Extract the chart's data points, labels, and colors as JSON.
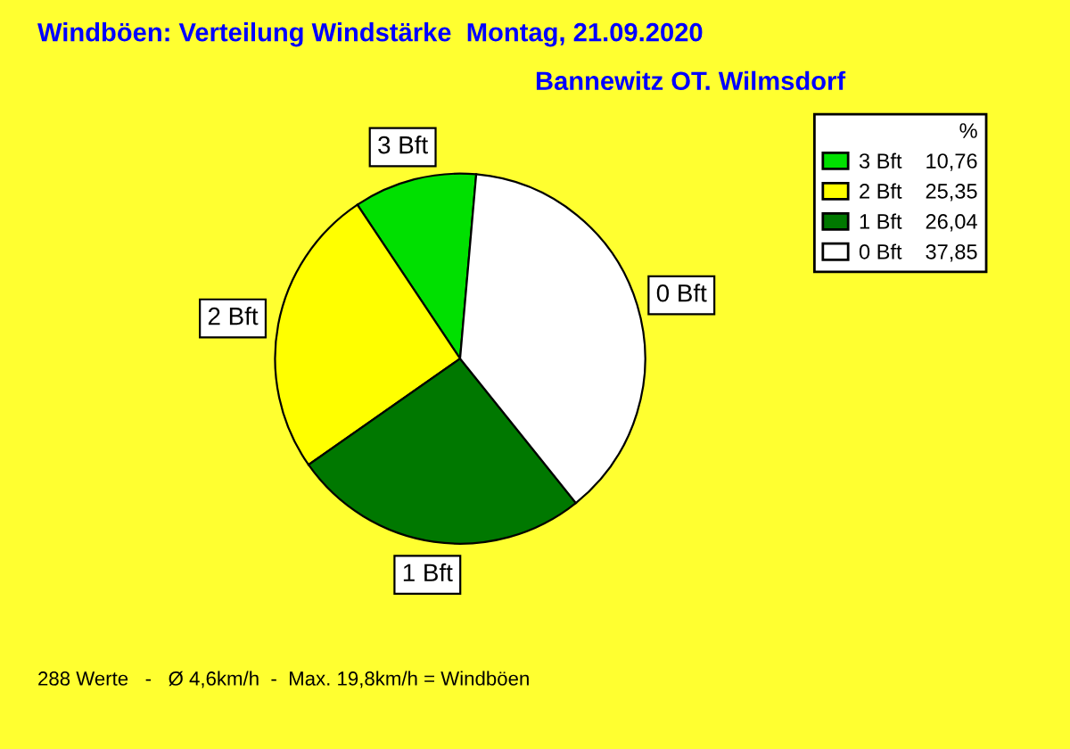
{
  "chart_data": {
    "type": "pie",
    "title": "Windböen: Verteilung Windstärke  Montag, 21.09.2020",
    "subtitle": "Bannewitz OT. Wilmsdorf",
    "categories": [
      "3 Bft",
      "2 Bft",
      "1 Bft",
      "0 Bft"
    ],
    "values": [
      10.76,
      25.35,
      26.04,
      37.85
    ],
    "value_labels": [
      "10,76",
      "25,35",
      "26,04",
      "37,85"
    ],
    "colors": [
      "#00e000",
      "#ffff00",
      "#007800",
      "#ffffff"
    ],
    "legend_title": "%",
    "legend": "top right",
    "annotations": [
      "288 Werte   -   Ø 4,6km/h  -  Max. 19,8km/h = Windböen"
    ]
  }
}
